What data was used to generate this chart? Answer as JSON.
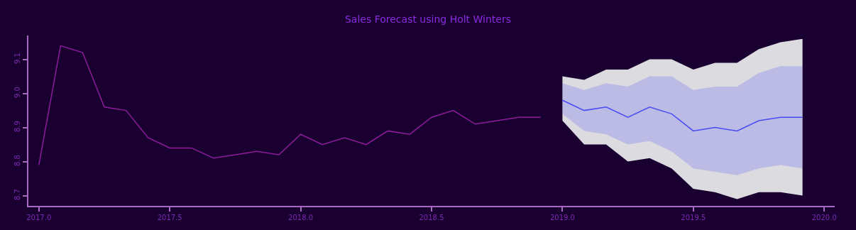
{
  "chart_data": {
    "type": "line",
    "title": "Sales Forecast using Holt Winters",
    "xlim": [
      2016.96,
      2020.04
    ],
    "xticks": [
      {
        "value": 2017,
        "label": "2017.0"
      },
      {
        "value": 2017.5,
        "label": "2017.5"
      },
      {
        "value": 2018,
        "label": "2018.0"
      },
      {
        "value": 2018.5,
        "label": "2018.5"
      },
      {
        "value": 2019,
        "label": "2019.0"
      },
      {
        "value": 2019.5,
        "label": "2019.5"
      },
      {
        "value": 2020,
        "label": "2020.0"
      }
    ],
    "ylim": [
      8.67,
      9.17
    ],
    "yticks": [
      {
        "value": 8.7,
        "label": "8.7"
      },
      {
        "value": 8.8,
        "label": "8.8"
      },
      {
        "value": 8.9,
        "label": "8.9"
      },
      {
        "value": 9.0,
        "label": "9.0"
      },
      {
        "value": 9.1,
        "label": "9.1"
      }
    ],
    "grid": false,
    "marker": "none",
    "line_style": "solid",
    "series": [
      {
        "color": "#8e1a9c",
        "x": [
          2017.0,
          2017.083,
          2017.167,
          2017.25,
          2017.333,
          2017.417,
          2017.5,
          2017.583,
          2017.667,
          2017.75,
          2017.833,
          2017.917,
          2018.0,
          2018.083,
          2018.167,
          2018.25,
          2018.333,
          2018.417,
          2018.5,
          2018.583,
          2018.667,
          2018.75,
          2018.833,
          2018.917
        ],
        "values": [
          8.79,
          9.14,
          9.12,
          8.96,
          8.95,
          8.87,
          8.84,
          8.84,
          8.81,
          8.82,
          8.83,
          8.82,
          8.88,
          8.85,
          8.87,
          8.85,
          8.89,
          8.88,
          8.93,
          8.95,
          8.91,
          8.92,
          8.93,
          8.93
        ]
      },
      {
        "color": "#dcdce0",
        "x": [
          2019.0,
          2019.083,
          2019.167,
          2019.25,
          2019.333,
          2019.417,
          2019.5,
          2019.583,
          2019.667,
          2019.75,
          2019.833,
          2019.917
        ],
        "values": [
          null,
          null,
          null,
          null,
          null,
          null,
          null,
          null,
          null,
          null,
          null,
          null
        ],
        "lower": [
          8.92,
          8.85,
          8.85,
          8.8,
          8.81,
          8.78,
          8.72,
          8.71,
          8.69,
          8.71,
          8.71,
          8.7
        ],
        "upper": [
          9.05,
          9.04,
          9.07,
          9.07,
          9.1,
          9.1,
          9.07,
          9.09,
          9.09,
          9.13,
          9.15,
          9.16
        ]
      },
      {
        "color": "#4a4af5",
        "x": [
          2019.0,
          2019.083,
          2019.167,
          2019.25,
          2019.333,
          2019.417,
          2019.5,
          2019.583,
          2019.667,
          2019.75,
          2019.833,
          2019.917
        ],
        "values": [
          8.98,
          8.95,
          8.96,
          8.93,
          8.96,
          8.94,
          8.89,
          8.9,
          8.89,
          8.92,
          8.93,
          8.93
        ],
        "lower": [
          8.94,
          8.89,
          8.88,
          8.85,
          8.86,
          8.83,
          8.78,
          8.77,
          8.76,
          8.78,
          8.79,
          8.78
        ],
        "upper": [
          9.03,
          9.01,
          9.03,
          9.02,
          9.05,
          9.05,
          9.01,
          9.02,
          9.02,
          9.06,
          9.08,
          9.08
        ]
      }
    ]
  }
}
